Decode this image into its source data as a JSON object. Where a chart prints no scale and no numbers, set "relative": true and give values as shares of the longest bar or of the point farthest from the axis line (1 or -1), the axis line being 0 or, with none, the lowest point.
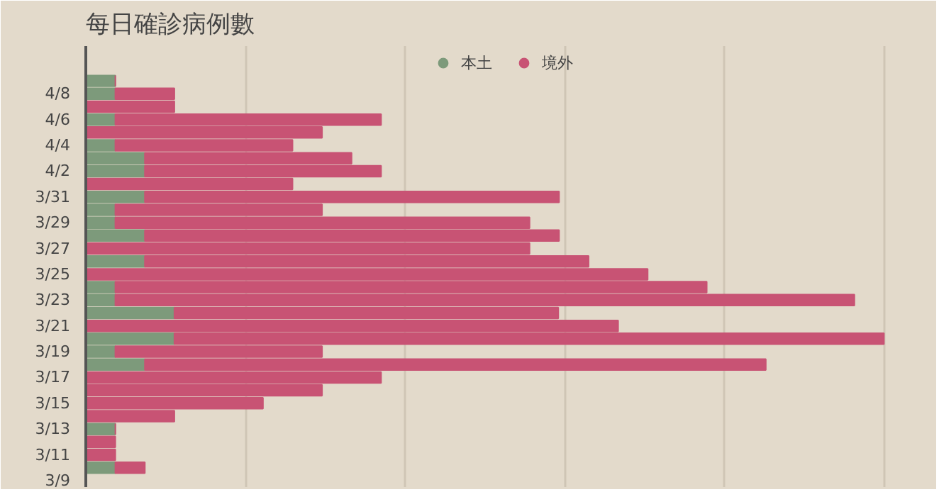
{
  "chart_data": {
    "type": "bar",
    "orientation": "horizontal",
    "stacked": true,
    "relative": true,
    "title": "每日確診病例數",
    "categories": [
      null,
      "4/8",
      null,
      "4/6",
      null,
      "4/4",
      null,
      "4/2",
      null,
      "3/31",
      null,
      "3/29",
      null,
      "3/27",
      null,
      "3/25",
      null,
      "3/23",
      null,
      "3/21",
      null,
      "3/19",
      null,
      "3/17",
      null,
      "3/15",
      null,
      "3/13",
      null,
      "3/11",
      null,
      "3/9"
    ],
    "series": [
      {
        "name": "本土",
        "color": "#7d9a7b",
        "values": [
          0.037,
          0.037,
          0,
          0.037,
          0,
          0.037,
          0.074,
          0.074,
          0,
          0.074,
          0.037,
          0.037,
          0.074,
          0,
          0.074,
          0,
          0.037,
          0.037,
          0.111,
          0,
          0.111,
          0.037,
          0.074,
          0,
          0,
          0,
          0,
          0.037,
          0,
          0,
          0.037,
          0
        ]
      },
      {
        "name": "境外",
        "color": "#c85374",
        "values": [
          0,
          0.074,
          0.111,
          0.333,
          0.296,
          0.222,
          0.259,
          0.296,
          0.259,
          0.519,
          0.259,
          0.519,
          0.519,
          0.556,
          0.556,
          0.704,
          0.741,
          0.926,
          0.481,
          0.667,
          0.889,
          0.259,
          0.778,
          0.37,
          0.296,
          0.222,
          0.111,
          0,
          0.037,
          0.037,
          0.037,
          0
        ]
      }
    ],
    "grid": "x",
    "legend": "top",
    "marker": "circle"
  }
}
